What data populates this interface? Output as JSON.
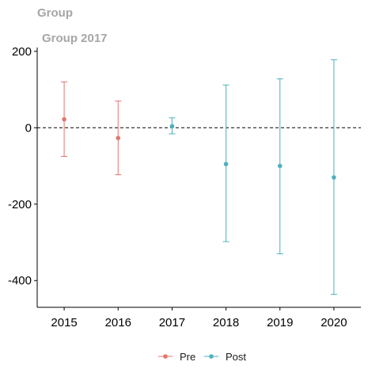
{
  "chart_data": {
    "type": "scatter",
    "title": "Group",
    "subtitle": "Group 2017",
    "xlabel": "",
    "ylabel": "",
    "categories": [
      "2015",
      "2016",
      "2017",
      "2018",
      "2019",
      "2020"
    ],
    "ylim": [
      -470,
      210
    ],
    "yticks": [
      200,
      0,
      -200,
      -400
    ],
    "ytick_labels": [
      "200",
      "0",
      "-200",
      "-400"
    ],
    "reference_line": {
      "y": 0,
      "style": "dashed",
      "color": "#000000"
    },
    "grid": false,
    "legend": {
      "placement": "bottom"
    },
    "series": [
      {
        "name": "Pre",
        "color": "#e0766e",
        "points": [
          {
            "x": "2015",
            "y": 22,
            "lower": -75,
            "upper": 120
          },
          {
            "x": "2016",
            "y": -27,
            "lower": -123,
            "upper": 70
          }
        ]
      },
      {
        "name": "Post",
        "color": "#4fb0bf",
        "points": [
          {
            "x": "2017",
            "y": 4,
            "lower": -16,
            "upper": 26
          },
          {
            "x": "2018",
            "y": -95,
            "lower": -298,
            "upper": 112
          },
          {
            "x": "2019",
            "y": -100,
            "lower": -330,
            "upper": 128
          },
          {
            "x": "2020",
            "y": -130,
            "lower": -436,
            "upper": 178
          }
        ]
      }
    ]
  }
}
